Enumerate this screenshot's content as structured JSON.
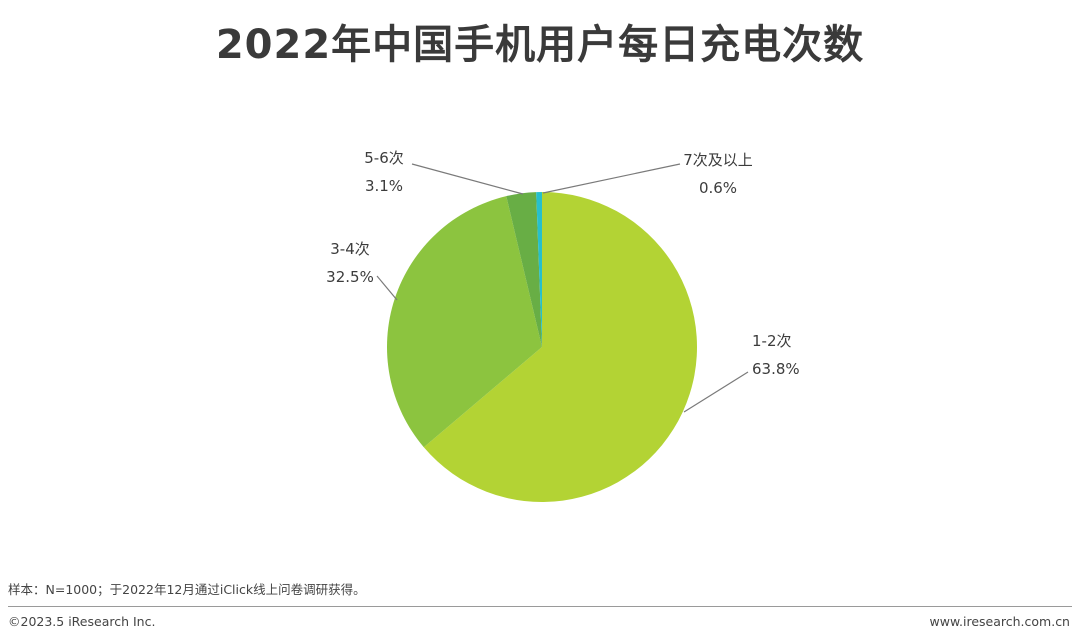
{
  "chart_data": {
    "type": "pie",
    "title": "2022年中国手机用户每日充电次数",
    "categories": [
      "1-2次",
      "3-4次",
      "5-6次",
      "7次及以上"
    ],
    "values": [
      63.8,
      32.5,
      3.1,
      0.6
    ],
    "value_labels": [
      "63.8%",
      "32.5%",
      "3.1%",
      "0.6%"
    ],
    "colors": [
      "#b3d334",
      "#8cc43f",
      "#68ae45",
      "#27c0cc"
    ],
    "start_angle": "12 o'clock",
    "direction": "clockwise"
  },
  "footer": {
    "note": "样本：N=1000；于2022年12月通过iClick线上问卷调研获得。",
    "copyright": "©2023.5 iResearch Inc.",
    "website": "www.iresearch.com.cn"
  }
}
